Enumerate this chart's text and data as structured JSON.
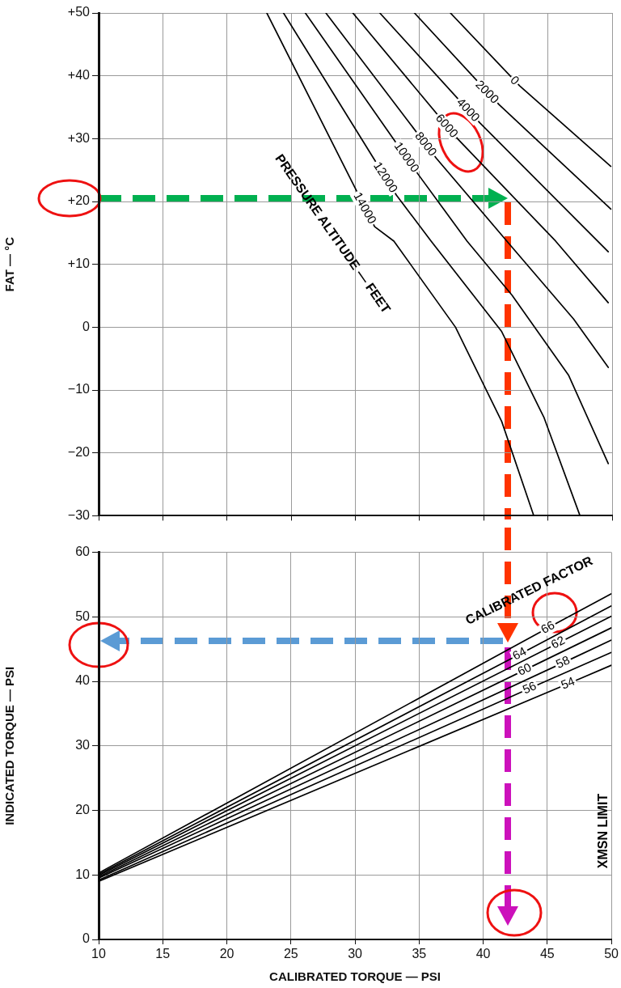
{
  "chart_data": [
    {
      "type": "line",
      "ylabel": "FAT — °C",
      "xlim": [
        10,
        50
      ],
      "xticks": [
        10,
        15,
        20,
        25,
        30,
        35,
        40,
        45,
        50
      ],
      "ylim": [
        -30,
        50
      ],
      "yticks": [
        {
          "value": 50,
          "label": "+50"
        },
        {
          "value": 40,
          "label": "+40"
        },
        {
          "value": 30,
          "label": "+30"
        },
        {
          "value": 20,
          "label": "+20"
        },
        {
          "value": 10,
          "label": "+10"
        },
        0,
        {
          "value": -10,
          "label": "−10"
        },
        {
          "value": -20,
          "label": "−20"
        },
        {
          "value": -30,
          "label": "−30"
        }
      ],
      "grid": true,
      "legend": false,
      "tick_labels": "y",
      "marker": "none",
      "line_style": "solid",
      "annotations": [
        "PRESSURE ALTITUDE — FEET"
      ],
      "series": [
        {
          "name": "0",
          "color": "#000000",
          "x": [
            37.4,
            42.8,
            49.9
          ],
          "values": [
            50,
            38.4,
            25.6
          ]
        },
        {
          "name": "2000",
          "color": "#000000",
          "x": [
            34.6,
            41.2,
            49.9
          ],
          "values": [
            50,
            35.4,
            18.8
          ]
        },
        {
          "name": "4000",
          "color": "#000000",
          "x": [
            31.9,
            39.7,
            49.7
          ],
          "values": [
            50,
            32.5,
            12.0
          ]
        },
        {
          "name": "6000",
          "color": "#000000",
          "x": [
            29.8,
            38.0,
            45.6,
            49.7
          ],
          "values": [
            50,
            29.9,
            13.7,
            3.9
          ]
        },
        {
          "name": "8000",
          "color": "#000000",
          "x": [
            27.7,
            36.3,
            41.8,
            47.0,
            49.7
          ],
          "values": [
            50,
            26.9,
            13.7,
            1.3,
            -6.4
          ]
        },
        {
          "name": "10000",
          "color": "#000000",
          "x": [
            26.1,
            34.9,
            38.7,
            42.2,
            46.6,
            49.7
          ],
          "values": [
            50,
            24.3,
            13.7,
            5.1,
            -7.6,
            -21.7
          ]
        },
        {
          "name": "12000",
          "color": "#000000",
          "x": [
            24.4,
            33.2,
            35.9,
            41.4,
            44.7,
            47.5
          ],
          "values": [
            50,
            21,
            13.7,
            -0.7,
            -14.4,
            -30
          ]
        },
        {
          "name": "14000",
          "color": "#000000",
          "x": [
            23.1,
            31.5,
            33.0,
            37.8,
            41.4,
            43.9
          ],
          "values": [
            50,
            16,
            13.7,
            0,
            -15,
            -30
          ]
        }
      ]
    },
    {
      "type": "line",
      "xlabel": "CALIBRATED TORQUE — PSI",
      "ylabel": "INDICATED TORQUE — PSI",
      "xlim": [
        10,
        50
      ],
      "xticks": [
        10,
        15,
        20,
        25,
        30,
        35,
        40,
        45,
        50
      ],
      "ylim": [
        0,
        60
      ],
      "yticks": [
        0,
        10,
        20,
        30,
        40,
        50,
        60
      ],
      "grid": true,
      "legend": false,
      "marker": "none",
      "line_style": "solid",
      "annotations": [
        "CALIBRATED FACTOR",
        "XMSN LIMIT"
      ],
      "series": [
        {
          "name": "66",
          "color": "#000000",
          "x": [
            10,
            45.8,
            50
          ],
          "values": [
            10.3,
            49.1,
            53.6
          ]
        },
        {
          "name": "64",
          "color": "#000000",
          "x": [
            10,
            43.6,
            50
          ],
          "values": [
            10.1,
            45.0,
            51.7
          ]
        },
        {
          "name": "62",
          "color": "#000000",
          "x": [
            10,
            46.6,
            50
          ],
          "values": [
            9.9,
            46.7,
            50.1
          ]
        },
        {
          "name": "60",
          "color": "#000000",
          "x": [
            10,
            44,
            50
          ],
          "values": [
            9.7,
            42.5,
            48.3
          ]
        },
        {
          "name": "58",
          "color": "#000000",
          "x": [
            10,
            47,
            50
          ],
          "values": [
            9.5,
            43.6,
            46.4
          ]
        },
        {
          "name": "56",
          "color": "#000000",
          "x": [
            10,
            44.4,
            50
          ],
          "values": [
            9.2,
            39.6,
            44.5
          ]
        },
        {
          "name": "54",
          "color": "#000000",
          "x": [
            10,
            47.4,
            50
          ],
          "values": [
            9.0,
            40.3,
            42.5
          ]
        }
      ]
    }
  ]
}
